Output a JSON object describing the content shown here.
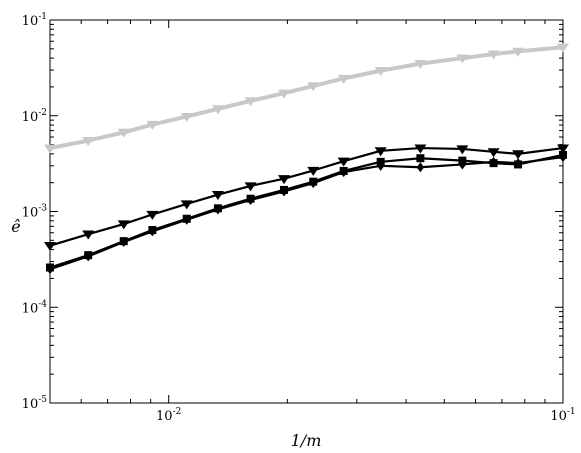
{
  "chart_data": {
    "type": "line",
    "xlabel": "1/m",
    "ylabel": "ê",
    "xscale": "log",
    "yscale": "log",
    "xlim": [
      0.005,
      0.1
    ],
    "ylim": [
      1e-05,
      0.1
    ],
    "grid": false,
    "x_ticks": [
      {
        "value": 0.01,
        "label": "10",
        "exp": "-2"
      },
      {
        "value": 0.1,
        "label": "10",
        "exp": "-1"
      }
    ],
    "y_ticks": [
      {
        "value": 1e-05,
        "label": "10",
        "exp": "-5"
      },
      {
        "value": 0.0001,
        "label": "10",
        "exp": "-4"
      },
      {
        "value": 0.001,
        "label": "10",
        "exp": "-3"
      },
      {
        "value": 0.01,
        "label": "10",
        "exp": "-2"
      },
      {
        "value": 0.1,
        "label": "10",
        "exp": "-1"
      }
    ],
    "x": [
      0.005,
      0.00625,
      0.00769,
      0.00909,
      0.01111,
      0.01333,
      0.01613,
      0.01961,
      0.02326,
      0.02778,
      0.03448,
      0.04348,
      0.05556,
      0.06667,
      0.07692,
      0.1
    ],
    "series": [
      {
        "color": "#c8c8c8",
        "marker": "triangle-down",
        "values": [
          0.0046,
          0.0055,
          0.0067,
          0.0081,
          0.0098,
          0.0118,
          0.0143,
          0.0172,
          0.0205,
          0.0245,
          0.0296,
          0.035,
          0.04,
          0.044,
          0.047,
          0.052
        ]
      },
      {
        "color": "#000000",
        "marker": "triangle-down",
        "values": [
          0.00044,
          0.00058,
          0.00074,
          0.00093,
          0.0012,
          0.0015,
          0.00185,
          0.0022,
          0.00268,
          0.00335,
          0.0043,
          0.0046,
          0.0045,
          0.0042,
          0.004,
          0.0046
        ]
      },
      {
        "color": "#000000",
        "marker": "square",
        "values": [
          0.00026,
          0.00035,
          0.00049,
          0.00064,
          0.00084,
          0.00108,
          0.00136,
          0.00168,
          0.00205,
          0.00265,
          0.0033,
          0.0036,
          0.0034,
          0.0032,
          0.0031,
          0.0039
        ]
      },
      {
        "color": "#000000",
        "marker": "diamond",
        "values": [
          0.00025,
          0.00034,
          0.00048,
          0.00062,
          0.00082,
          0.00105,
          0.00132,
          0.00162,
          0.00198,
          0.00258,
          0.003,
          0.0029,
          0.0031,
          0.0033,
          0.0032,
          0.0037
        ]
      }
    ]
  }
}
